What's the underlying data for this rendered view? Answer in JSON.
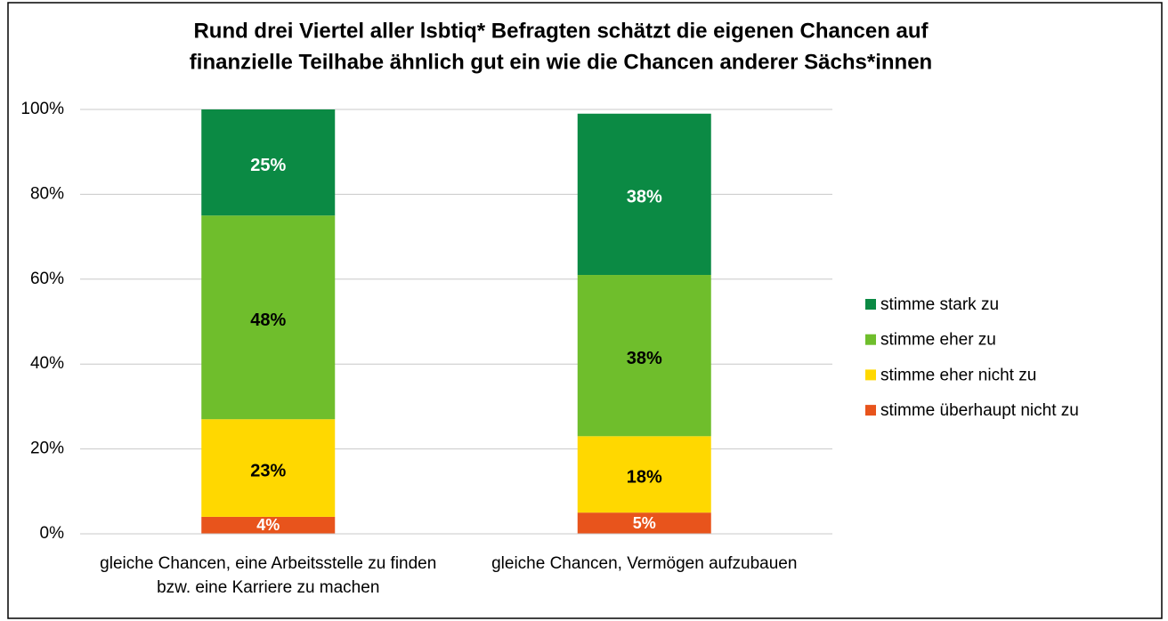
{
  "chart_data": {
    "type": "stacked_bar",
    "title": [
      "Rund drei Viertel aller lsbtiq* Befragten schätzt die eigenen Chancen auf",
      "finanzielle Teilhabe ähnlich gut ein wie die Chancen anderer Sächs*innen"
    ],
    "categories": [
      "gleiche Chancen, eine Arbeitsstelle zu finden bzw. eine Karriere zu machen",
      "gleiche Chancen, Vermögen aufzubauen"
    ],
    "series": [
      {
        "name": "stimme überhaupt nicht zu",
        "color": "#e8541c",
        "label_color": "#ffffff",
        "values": [
          4,
          5
        ],
        "value_labels": [
          "4%",
          "5%"
        ]
      },
      {
        "name": "stimme eher nicht zu",
        "color": "#ffd800",
        "label_color": "#000000",
        "values": [
          23,
          18
        ],
        "value_labels": [
          "23%",
          "18%"
        ]
      },
      {
        "name": "stimme eher zu",
        "color": "#6fbe2c",
        "label_color": "#000000",
        "values": [
          48,
          38
        ],
        "value_labels": [
          "48%",
          "38%"
        ]
      },
      {
        "name": "stimme stark zu",
        "color": "#0b8a44",
        "label_color": "#ffffff",
        "values": [
          25,
          38
        ],
        "value_labels": [
          "25%",
          "38%"
        ]
      }
    ],
    "ylim": [
      0,
      100
    ],
    "yticks": [
      {
        "value": 0,
        "label": "0%"
      },
      {
        "value": 20,
        "label": "20%"
      },
      {
        "value": 40,
        "label": "40%"
      },
      {
        "value": 60,
        "label": "60%"
      },
      {
        "value": 80,
        "label": "80%"
      },
      {
        "value": 100,
        "label": "100%"
      }
    ],
    "grid": true,
    "legend": "right"
  }
}
